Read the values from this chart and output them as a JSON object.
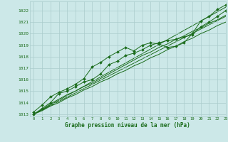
{
  "bg_color": "#cce8e8",
  "grid_color": "#aacccc",
  "line_color": "#1a6b1a",
  "title": "Graphe pression niveau de la mer (hPa)",
  "xlim": [
    -0.5,
    23
  ],
  "ylim": [
    1012.8,
    1022.8
  ],
  "xticks": [
    0,
    1,
    2,
    3,
    4,
    5,
    6,
    7,
    8,
    9,
    10,
    11,
    12,
    13,
    14,
    15,
    16,
    17,
    18,
    19,
    20,
    21,
    22,
    23
  ],
  "yticks": [
    1013,
    1014,
    1015,
    1016,
    1017,
    1018,
    1019,
    1020,
    1021,
    1022
  ],
  "series": [
    [
      1013.2,
      1013.8,
      1014.5,
      1014.9,
      1015.2,
      1015.6,
      1016.1,
      1017.1,
      1017.5,
      1018.0,
      1018.4,
      1018.8,
      1018.5,
      1019.0,
      1019.2,
      1019.1,
      1018.8,
      1018.9,
      1019.2,
      1020.0,
      1021.1,
      1021.5,
      1022.1,
      1022.5
    ],
    [
      1013.0,
      1013.5,
      1014.0,
      1014.8,
      1015.0,
      1015.4,
      1015.8,
      1016.0,
      1016.5,
      1017.3,
      1017.6,
      1018.1,
      1018.3,
      1018.6,
      1019.0,
      1019.2,
      1019.4,
      1019.5,
      1019.7,
      1019.9,
      1020.6,
      1021.0,
      1021.5,
      1022.0
    ],
    [
      1013.0,
      1013.4,
      1013.9,
      1014.3,
      1014.7,
      1015.0,
      1015.4,
      1015.7,
      1016.1,
      1016.5,
      1016.9,
      1017.3,
      1017.7,
      1018.1,
      1018.4,
      1018.8,
      1019.1,
      1019.5,
      1019.8,
      1020.2,
      1020.5,
      1020.9,
      1021.2,
      1021.6
    ],
    [
      1013.0,
      1013.3,
      1013.7,
      1014.0,
      1014.4,
      1014.7,
      1015.1,
      1015.4,
      1015.8,
      1016.1,
      1016.5,
      1016.8,
      1017.2,
      1017.5,
      1017.9,
      1018.2,
      1018.6,
      1018.9,
      1019.3,
      1019.6,
      1020.0,
      1020.3,
      1020.7,
      1021.0
    ]
  ],
  "marker_series_idx": [
    0,
    1
  ],
  "straight_lines": [
    [
      1013.0,
      1022.3
    ],
    [
      1013.0,
      1021.5
    ]
  ],
  "marker": "D",
  "marker_size": 2,
  "linewidth": 0.7,
  "straight_linewidth": 0.7
}
